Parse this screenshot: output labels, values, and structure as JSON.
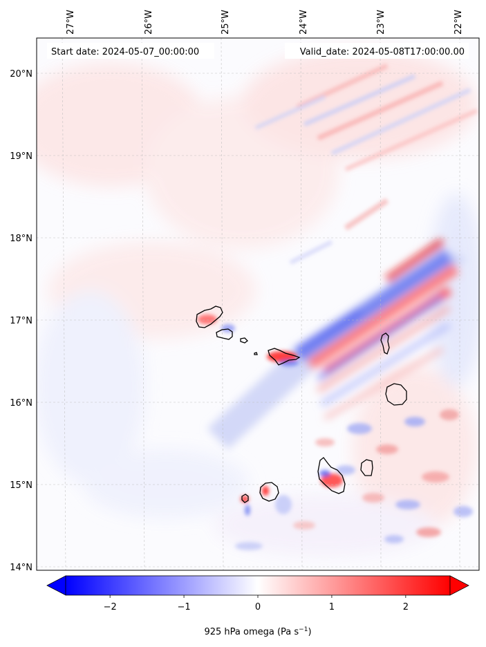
{
  "start_date": "Start date: 2024-05-07_00:00:00",
  "valid_date": "Valid_date: 2024-05-08T17:00:00.00",
  "lon_labels": [
    "27°W",
    "26°W",
    "25°W",
    "24°W",
    "23°W",
    "22°W"
  ],
  "lat_labels": [
    "20°N",
    "19°N",
    "18°N",
    "17°N",
    "16°N",
    "15°N",
    "14°N"
  ],
  "colorbar": {
    "label": "925 hPa omega (Pa s",
    "label_sup": "−1",
    "label_suffix": ")",
    "ticks": [
      "−2",
      "−1",
      "0",
      "1",
      "2"
    ],
    "tick_values": [
      -2,
      -1,
      0,
      1,
      2
    ],
    "range": [
      -2.6,
      2.6
    ],
    "min_color": "#0000ff",
    "mid_color": "#ffffff",
    "max_color": "#ff0000",
    "extend": "both"
  },
  "map": {
    "lon_range": [
      -27.3,
      -21.8
    ],
    "lat_range": [
      13.95,
      20.4
    ],
    "variable": "omega",
    "level_hPa": 925,
    "gridlines": true,
    "coastline_color": "#000000"
  }
}
